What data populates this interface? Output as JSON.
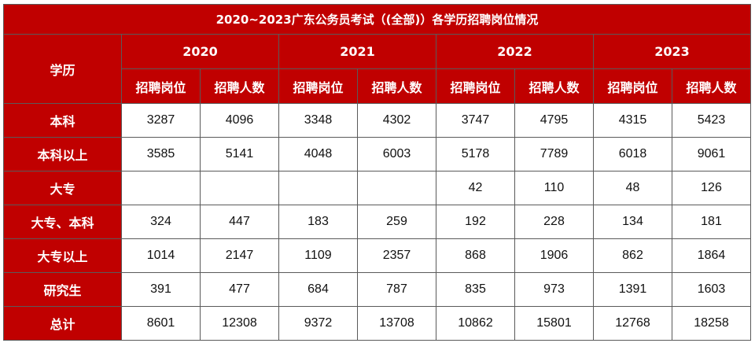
{
  "title": "2020~2023广东公务员考试（(全部)）各学历招聘岗位情况",
  "header": {
    "education_label": "学历",
    "years": [
      "2020",
      "2021",
      "2022",
      "2023"
    ],
    "positions_label": "招聘岗位",
    "people_label": "招聘人数"
  },
  "rows": [
    {
      "label": "本科",
      "values": [
        "3287",
        "4096",
        "3348",
        "4302",
        "3747",
        "4795",
        "4315",
        "5423"
      ]
    },
    {
      "label": "本科以上",
      "values": [
        "3585",
        "5141",
        "4048",
        "6003",
        "5178",
        "7789",
        "6018",
        "9061"
      ]
    },
    {
      "label": "大专",
      "values": [
        "",
        "",
        "",
        "",
        "42",
        "110",
        "48",
        "126"
      ]
    },
    {
      "label": "大专、本科",
      "values": [
        "324",
        "447",
        "183",
        "259",
        "192",
        "228",
        "134",
        "181"
      ]
    },
    {
      "label": "大专以上",
      "values": [
        "1014",
        "2147",
        "1109",
        "2357",
        "868",
        "1906",
        "862",
        "1864"
      ]
    },
    {
      "label": "研究生",
      "values": [
        "391",
        "477",
        "684",
        "787",
        "835",
        "973",
        "1391",
        "1603"
      ]
    },
    {
      "label": "总计",
      "values": [
        "8601",
        "12308",
        "9372",
        "13708",
        "10862",
        "15801",
        "12768",
        "18258"
      ]
    }
  ]
}
